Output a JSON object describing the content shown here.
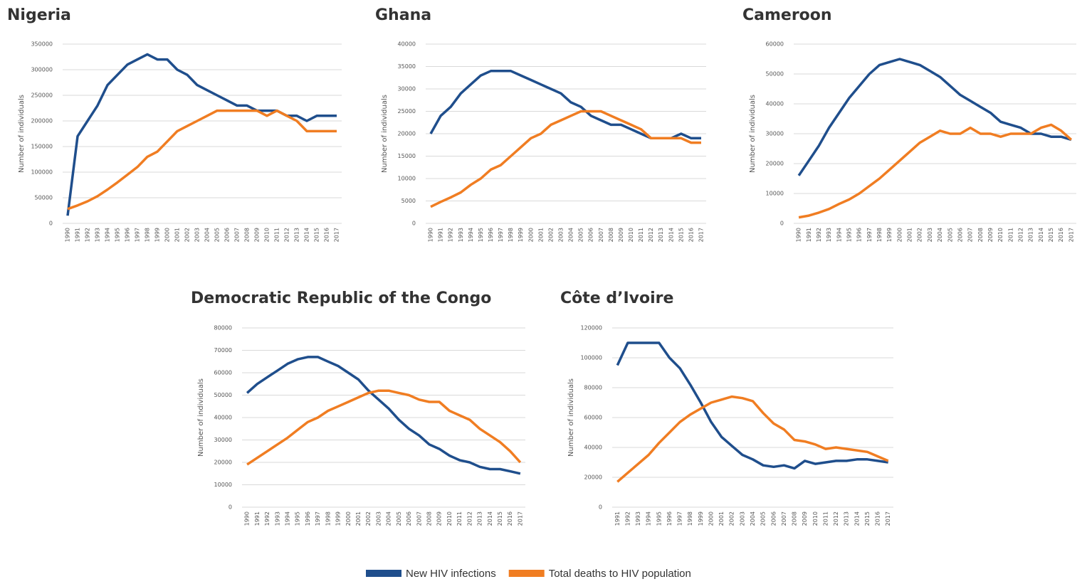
{
  "chart_data": [
    {
      "type": "line",
      "title": "Nigeria",
      "y_label": "Number of individuals",
      "categories": [
        "1990",
        "1991",
        "1992",
        "1993",
        "1994",
        "1995",
        "1996",
        "1997",
        "1998",
        "1999",
        "2000",
        "2001",
        "2002",
        "2003",
        "2004",
        "2005",
        "2006",
        "2007",
        "2008",
        "2009",
        "2010",
        "2011",
        "2012",
        "2013",
        "2014",
        "2015",
        "2016",
        "2017"
      ],
      "series": [
        {
          "values": [
            15000,
            170000,
            200000,
            230000,
            270000,
            290000,
            310000,
            320000,
            330000,
            320000,
            320000,
            300000,
            290000,
            270000,
            260000,
            250000,
            240000,
            230000,
            230000,
            220000,
            220000,
            220000,
            210000,
            210000,
            200000,
            210000,
            210000,
            210000
          ]
        },
        {
          "values": [
            28000,
            35000,
            43000,
            53000,
            66000,
            80000,
            95000,
            110000,
            130000,
            140000,
            160000,
            180000,
            190000,
            200000,
            210000,
            220000,
            220000,
            220000,
            220000,
            220000,
            210000,
            220000,
            210000,
            200000,
            180000,
            180000,
            180000,
            180000
          ]
        }
      ],
      "ylim": [
        0,
        350000
      ],
      "yticks": [
        0,
        50000,
        100000,
        150000,
        200000,
        250000,
        300000,
        350000
      ],
      "grid": true
    },
    {
      "type": "line",
      "title": "Ghana",
      "y_label": "Number of individuals",
      "categories": [
        "1990",
        "1991",
        "1992",
        "1993",
        "1994",
        "1995",
        "1996",
        "1997",
        "1998",
        "1999",
        "2000",
        "2001",
        "2002",
        "2003",
        "2004",
        "2005",
        "2006",
        "2007",
        "2008",
        "2009",
        "2010",
        "2011",
        "2012",
        "2013",
        "2014",
        "2015",
        "2016",
        "2017"
      ],
      "series": [
        {
          "values": [
            20000,
            24000,
            26000,
            29000,
            31000,
            33000,
            34000,
            34000,
            34000,
            33000,
            32000,
            31000,
            30000,
            29000,
            27000,
            26000,
            24000,
            23000,
            22000,
            22000,
            21000,
            20000,
            19000,
            19000,
            19000,
            20000,
            19000,
            19000
          ]
        },
        {
          "values": [
            3700,
            4800,
            5800,
            6900,
            8600,
            10000,
            12000,
            13000,
            15000,
            17000,
            19000,
            20000,
            22000,
            23000,
            24000,
            25000,
            25000,
            25000,
            24000,
            23000,
            22000,
            21000,
            19000,
            19000,
            19000,
            19000,
            18000,
            18000
          ]
        }
      ],
      "ylim": [
        0,
        40000
      ],
      "yticks": [
        0,
        5000,
        10000,
        15000,
        20000,
        25000,
        30000,
        35000,
        40000
      ],
      "grid": true
    },
    {
      "type": "line",
      "title": "Cameroon",
      "y_label": "Number of individuals",
      "categories": [
        "1990",
        "1991",
        "1992",
        "1993",
        "1994",
        "1995",
        "1996",
        "1997",
        "1998",
        "1999",
        "2000",
        "2001",
        "2002",
        "2003",
        "2004",
        "2005",
        "2006",
        "2007",
        "2008",
        "2009",
        "2010",
        "2011",
        "2012",
        "2013",
        "2014",
        "2015",
        "2016",
        "2017"
      ],
      "series": [
        {
          "values": [
            16000,
            21000,
            26000,
            32000,
            37000,
            42000,
            46000,
            50000,
            53000,
            54000,
            55000,
            54000,
            53000,
            51000,
            49000,
            46000,
            43000,
            41000,
            39000,
            37000,
            34000,
            33000,
            32000,
            30000,
            30000,
            29000,
            29000,
            28000
          ]
        },
        {
          "values": [
            2000,
            2600,
            3600,
            4800,
            6500,
            8000,
            10000,
            12500,
            15000,
            18000,
            21000,
            24000,
            27000,
            29000,
            31000,
            30000,
            30000,
            32000,
            30000,
            30000,
            29000,
            30000,
            30000,
            30000,
            32000,
            33000,
            31000,
            28000
          ]
        }
      ],
      "ylim": [
        0,
        60000
      ],
      "yticks": [
        0,
        10000,
        20000,
        30000,
        40000,
        50000,
        60000
      ],
      "grid": true
    },
    {
      "type": "line",
      "title": "Democratic Republic of the Congo",
      "y_label": "Number of individuals",
      "categories": [
        "1990",
        "1991",
        "1992",
        "1993",
        "1994",
        "1995",
        "1996",
        "1997",
        "1998",
        "1999",
        "2000",
        "2001",
        "2002",
        "2003",
        "2004",
        "2005",
        "2006",
        "2007",
        "2008",
        "2009",
        "2010",
        "2011",
        "2012",
        "2013",
        "2014",
        "2015",
        "2016",
        "2017"
      ],
      "series": [
        {
          "values": [
            51000,
            55000,
            58000,
            61000,
            64000,
            66000,
            67000,
            67000,
            65000,
            63000,
            60000,
            57000,
            52000,
            48000,
            44000,
            39000,
            35000,
            32000,
            28000,
            26000,
            23000,
            21000,
            20000,
            18000,
            17000,
            17000,
            16000,
            15000
          ]
        },
        {
          "values": [
            19000,
            22000,
            25000,
            28000,
            31000,
            34500,
            38000,
            40000,
            43000,
            45000,
            47000,
            49000,
            51000,
            52000,
            52000,
            51000,
            50000,
            48000,
            47000,
            47000,
            43000,
            41000,
            39000,
            35000,
            32000,
            29000,
            25000,
            20000
          ]
        }
      ],
      "ylim": [
        0,
        80000
      ],
      "yticks": [
        0,
        10000,
        20000,
        30000,
        40000,
        50000,
        60000,
        70000,
        80000
      ],
      "grid": true
    },
    {
      "type": "line",
      "title": "Côte d’Ivoire",
      "y_label": "Number of individuals",
      "categories": [
        "1991",
        "1992",
        "1993",
        "1994",
        "1995",
        "1996",
        "1997",
        "1998",
        "1999",
        "2000",
        "2001",
        "2002",
        "2003",
        "2004",
        "2005",
        "2006",
        "2007",
        "2008",
        "2009",
        "2010",
        "2011",
        "2012",
        "2013",
        "2014",
        "2015",
        "2016",
        "2017"
      ],
      "series": [
        {
          "values": [
            95000,
            110000,
            110000,
            110000,
            110000,
            100000,
            93000,
            82000,
            70000,
            57000,
            47000,
            41000,
            35000,
            32000,
            28000,
            27000,
            28000,
            26000,
            31000,
            29000,
            30000,
            31000,
            31000,
            32000,
            32000,
            31000,
            30000
          ]
        },
        {
          "values": [
            17000,
            23000,
            29000,
            35000,
            43000,
            50000,
            57000,
            62000,
            66000,
            70000,
            72000,
            74000,
            73000,
            71000,
            63000,
            56000,
            52000,
            45000,
            44000,
            42000,
            39000,
            40000,
            39000,
            38000,
            37000,
            34000,
            31000
          ]
        }
      ],
      "ylim": [
        0,
        120000
      ],
      "yticks": [
        0,
        20000,
        40000,
        60000,
        80000,
        100000,
        120000
      ],
      "grid": true
    }
  ],
  "legend": {
    "series": [
      {
        "name": "New HIV infections",
        "color": "#1f4e8c"
      },
      {
        "name": "Total deaths to HIV population",
        "color": "#f07d22"
      }
    ]
  }
}
